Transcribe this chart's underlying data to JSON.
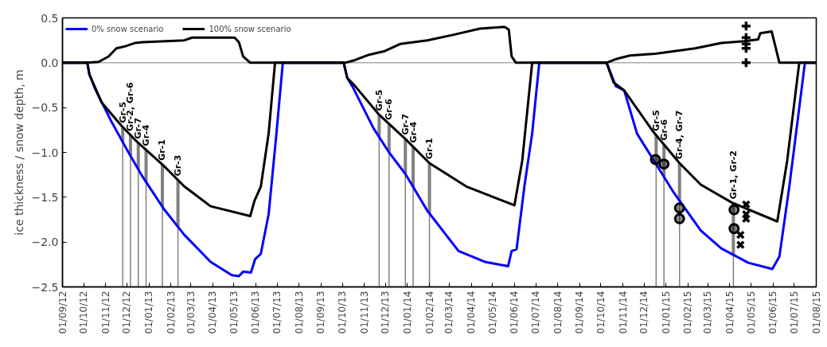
{
  "chart_data": {
    "type": "line",
    "ylabel": "ice thickness / snow depth, m",
    "xlim": [
      "2012-09-01",
      "2015-08-01"
    ],
    "xticks": [
      {
        "value": "2012-09-01",
        "label": "01/09/12"
      },
      {
        "value": "2012-10-01",
        "label": "01/10/12"
      },
      {
        "value": "2012-11-01",
        "label": "01/11/12"
      },
      {
        "value": "2012-12-01",
        "label": "01/12/12"
      },
      {
        "value": "2013-01-01",
        "label": "01/01/13"
      },
      {
        "value": "2013-02-01",
        "label": "01/02/13"
      },
      {
        "value": "2013-03-01",
        "label": "01/03/13"
      },
      {
        "value": "2013-04-01",
        "label": "01/04/13"
      },
      {
        "value": "2013-05-01",
        "label": "01/05/13"
      },
      {
        "value": "2013-06-01",
        "label": "01/06/13"
      },
      {
        "value": "2013-07-01",
        "label": "01/07/13"
      },
      {
        "value": "2013-08-01",
        "label": "01/08/13"
      },
      {
        "value": "2013-09-01",
        "label": "01/09/13"
      },
      {
        "value": "2013-10-01",
        "label": "01/10/13"
      },
      {
        "value": "2013-11-01",
        "label": "01/11/13"
      },
      {
        "value": "2013-12-01",
        "label": "01/12/13"
      },
      {
        "value": "2014-01-01",
        "label": "01/01/14"
      },
      {
        "value": "2014-02-01",
        "label": "01/02/14"
      },
      {
        "value": "2014-03-01",
        "label": "01/03/14"
      },
      {
        "value": "2014-04-01",
        "label": "01/04/14"
      },
      {
        "value": "2014-05-01",
        "label": "01/05/14"
      },
      {
        "value": "2014-06-01",
        "label": "01/06/14"
      },
      {
        "value": "2014-07-01",
        "label": "01/07/14"
      },
      {
        "value": "2014-08-01",
        "label": "01/08/14"
      },
      {
        "value": "2014-09-01",
        "label": "01/09/14"
      },
      {
        "value": "2014-10-01",
        "label": "01/10/14"
      },
      {
        "value": "2014-11-01",
        "label": "01/11/14"
      },
      {
        "value": "2014-12-01",
        "label": "01/12/14"
      },
      {
        "value": "2015-01-01",
        "label": "01/01/15"
      },
      {
        "value": "2015-02-01",
        "label": "01/02/15"
      },
      {
        "value": "2015-03-01",
        "label": "01/03/15"
      },
      {
        "value": "2015-04-01",
        "label": "01/04/15"
      },
      {
        "value": "2015-05-01",
        "label": "01/05/15"
      },
      {
        "value": "2015-06-01",
        "label": "01/06/15"
      },
      {
        "value": "2015-07-01",
        "label": "01/07/15"
      },
      {
        "value": "2015-08-01",
        "label": "01/08/15"
      }
    ],
    "ylim": [
      -2.5,
      0.5
    ],
    "yticks": [
      {
        "value": -2.5,
        "label": "−2.5"
      },
      {
        "value": -2.0,
        "label": "−2.0"
      },
      {
        "value": -1.5,
        "label": "−1.5"
      },
      {
        "value": -1.0,
        "label": "−1.0"
      },
      {
        "value": -0.5,
        "label": "−0.5"
      },
      {
        "value": 0.0,
        "label": "0.0"
      },
      {
        "value": 0.5,
        "label": "0.5"
      }
    ],
    "grid": false,
    "legend": "top left",
    "line_style": "solid",
    "series": [
      {
        "name": "0% snow scenario",
        "color": "#0000ff",
        "x": [
          "2012-09-01",
          "2012-10-06",
          "2012-10-09",
          "2012-10-17",
          "2012-11-08",
          "2012-12-01",
          "2012-12-23",
          "2013-01-22",
          "2013-02-20",
          "2013-03-29",
          "2013-04-28",
          "2013-05-08",
          "2013-05-14",
          "2013-05-25",
          "2013-05-31",
          "2013-06-08",
          "2013-06-19",
          "2013-06-30",
          "2013-07-09",
          "2013-10-03",
          "2013-10-08",
          "2013-10-15",
          "2013-11-14",
          "2013-12-06",
          "2013-12-29",
          "2014-01-29",
          "2014-03-14",
          "2014-04-20",
          "2014-05-23",
          "2014-05-28",
          "2014-06-04",
          "2014-06-15",
          "2014-06-26",
          "2014-07-06",
          "2014-10-09",
          "2014-10-22",
          "2014-11-03",
          "2014-11-21",
          "2014-12-17",
          "2015-01-12",
          "2015-02-19",
          "2015-03-20",
          "2015-04-27",
          "2015-05-31",
          "2015-06-10",
          "2015-06-24",
          "2015-07-16",
          "2015-08-01"
        ],
        "values": [
          0,
          0,
          -0.13,
          -0.29,
          -0.64,
          -0.97,
          -1.27,
          -1.63,
          -1.92,
          -2.22,
          -2.37,
          -2.38,
          -2.33,
          -2.34,
          -2.19,
          -2.13,
          -1.69,
          -0.79,
          0,
          0,
          -0.17,
          -0.26,
          -0.73,
          -1.0,
          -1.24,
          -1.65,
          -2.1,
          -2.22,
          -2.27,
          -2.1,
          -2.08,
          -1.38,
          -0.79,
          0,
          0,
          -0.26,
          -0.31,
          -0.79,
          -1.12,
          -1.45,
          -1.87,
          -2.07,
          -2.23,
          -2.3,
          -2.16,
          -1.38,
          0,
          0
        ]
      },
      {
        "name": "100% snow scenario",
        "color": "#000000",
        "x": [
          "2012-09-01",
          "2012-10-06",
          "2012-10-09",
          "2012-10-26",
          "2012-11-23",
          "2012-12-15",
          "2013-01-22",
          "2013-02-20",
          "2013-03-29",
          "2013-05-24",
          "2013-05-30",
          "2013-06-08",
          "2013-06-19",
          "2013-06-28",
          "2013-10-03",
          "2013-10-08",
          "2013-10-19",
          "2013-11-22",
          "2013-12-29",
          "2014-02-01",
          "2014-03-25",
          "2014-06-01",
          "2014-06-12",
          "2014-06-26",
          "2014-10-09",
          "2014-10-19",
          "2014-11-03",
          "2014-12-13",
          "2015-01-20",
          "2015-02-19",
          "2015-04-04",
          "2015-06-07",
          "2015-06-21",
          "2015-07-08",
          "2015-08-01"
        ],
        "values": [
          0,
          0,
          -0.13,
          -0.44,
          -0.7,
          -0.88,
          -1.15,
          -1.38,
          -1.6,
          -1.71,
          -1.54,
          -1.38,
          -0.79,
          0,
          0,
          -0.17,
          -0.26,
          -0.58,
          -0.85,
          -1.12,
          -1.38,
          -1.59,
          -1.09,
          0,
          0,
          -0.22,
          -0.31,
          -0.76,
          -1.12,
          -1.36,
          -1.56,
          -1.77,
          -1.09,
          0,
          0
        ]
      },
      {
        "color": "#000000",
        "x": [
          "2012-09-01",
          "2012-10-06",
          "2012-10-22",
          "2012-11-05",
          "2012-11-16",
          "2012-11-27",
          "2012-12-12",
          "2012-12-23",
          "2013-02-20",
          "2013-03-03",
          "2013-05-02",
          "2013-05-08",
          "2013-05-14",
          "2013-05-24",
          "2013-10-05",
          "2013-10-19",
          "2013-11-08",
          "2013-11-30",
          "2013-12-22",
          "2014-01-29",
          "2014-03-06",
          "2014-04-13",
          "2014-05-18",
          "2014-05-24",
          "2014-05-28",
          "2014-06-03",
          "2014-10-09",
          "2014-10-22",
          "2014-11-11",
          "2014-12-17",
          "2015-02-11",
          "2015-03-20",
          "2015-04-22",
          "2015-05-11",
          "2015-05-14",
          "2015-05-30",
          "2015-06-10",
          "2015-08-01"
        ],
        "values": [
          0,
          0,
          0.01,
          0.07,
          0.16,
          0.18,
          0.22,
          0.23,
          0.25,
          0.28,
          0.28,
          0.23,
          0.07,
          0,
          0,
          0.03,
          0.09,
          0.13,
          0.21,
          0.25,
          0.31,
          0.38,
          0.4,
          0.37,
          0.07,
          0,
          0,
          0.04,
          0.08,
          0.1,
          0.16,
          0.22,
          0.24,
          0.26,
          0.33,
          0.35,
          0,
          0
        ]
      },
      {
        "type": "scatter",
        "marker": "circle",
        "color": "#000000",
        "x": [
          "2014-12-17",
          "2014-12-29",
          "2015-01-20",
          "2015-01-20",
          "2015-04-07",
          "2015-04-07"
        ],
        "values": [
          -1.08,
          -1.13,
          -1.62,
          -1.74,
          -1.64,
          -1.85
        ]
      },
      {
        "type": "scatter",
        "marker": "x",
        "color": "#000000",
        "x": [
          "2015-04-24",
          "2015-04-24",
          "2015-04-24",
          "2015-04-16",
          "2015-04-16"
        ],
        "values": [
          -1.58,
          -1.69,
          -1.74,
          -1.92,
          -2.03
        ]
      },
      {
        "type": "scatter",
        "marker": "cross",
        "color": "#000000",
        "x": [
          "2015-04-24",
          "2015-04-24",
          "2015-04-24",
          "2015-04-24",
          "2015-04-24"
        ],
        "values": [
          0.41,
          0.28,
          0.21,
          0.16,
          0.0
        ]
      }
    ],
    "ref_lines": [
      {
        "axis": "y",
        "value": 0,
        "color": "#808080"
      },
      {
        "axis": "x",
        "value": "2012-11-25",
        "label": "Gr-5",
        "color": "#808080"
      },
      {
        "axis": "x",
        "value": "2012-12-06",
        "label": "Gr-2, Gr-6",
        "color": "#808080"
      },
      {
        "axis": "x",
        "value": "2012-12-17",
        "label": "Gr-7",
        "color": "#808080"
      },
      {
        "axis": "x",
        "value": "2012-12-28",
        "label": "Gr-4",
        "color": "#808080"
      },
      {
        "axis": "x",
        "value": "2013-01-20",
        "label": "Gr-1",
        "color": "#808080"
      },
      {
        "axis": "x",
        "value": "2013-02-11",
        "label": "Gr-3",
        "color": "#808080"
      },
      {
        "axis": "x",
        "value": "2013-11-22",
        "label": "Gr-5",
        "color": "#808080"
      },
      {
        "axis": "x",
        "value": "2013-12-06",
        "label": "Gr-6",
        "color": "#808080"
      },
      {
        "axis": "x",
        "value": "2013-12-29",
        "label": "Gr-7",
        "color": "#808080"
      },
      {
        "axis": "x",
        "value": "2014-01-09",
        "label": "Gr-4",
        "color": "#808080"
      },
      {
        "axis": "x",
        "value": "2014-02-01",
        "label": "Gr-1",
        "color": "#808080"
      },
      {
        "axis": "x",
        "value": "2014-12-18",
        "label": "Gr-5",
        "color": "#808080"
      },
      {
        "axis": "x",
        "value": "2014-12-29",
        "label": "Gr-6",
        "color": "#808080"
      },
      {
        "axis": "x",
        "value": "2015-01-20",
        "label": "Gr-4, Gr-7",
        "color": "#808080"
      },
      {
        "axis": "x",
        "value": "2015-04-06",
        "label": "Gr-1, Gr-2",
        "color": "#808080"
      }
    ]
  }
}
